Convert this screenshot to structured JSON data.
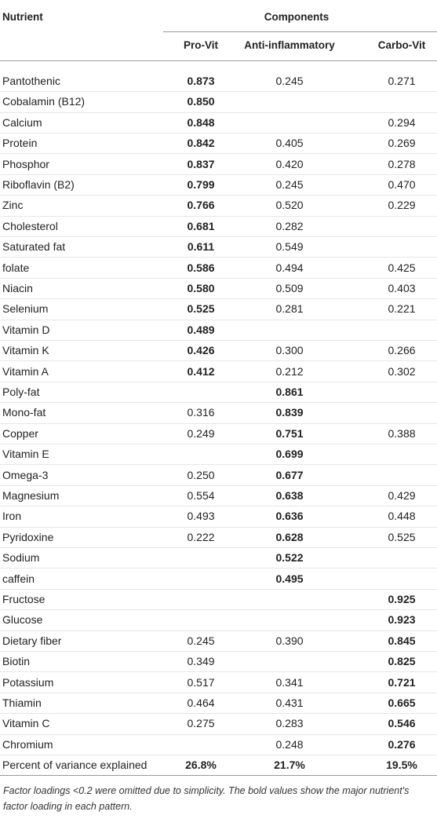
{
  "table": {
    "header": {
      "nutrient": "Nutrient",
      "components": "Components",
      "columns": [
        "Pro-Vit",
        "Anti-inflammatory",
        "Carbo-Vit"
      ]
    },
    "rows": [
      {
        "nutrient": "Pantothenic",
        "values": [
          "0.873",
          "0.245",
          "0.271"
        ],
        "bold": 0
      },
      {
        "nutrient": "Cobalamin (B12)",
        "values": [
          "0.850",
          null,
          null
        ],
        "bold": 0
      },
      {
        "nutrient": "Calcium",
        "values": [
          "0.848",
          null,
          "0.294"
        ],
        "bold": 0
      },
      {
        "nutrient": "Protein",
        "values": [
          "0.842",
          "0.405",
          "0.269"
        ],
        "bold": 0
      },
      {
        "nutrient": "Phosphor",
        "values": [
          "0.837",
          "0.420",
          "0.278"
        ],
        "bold": 0
      },
      {
        "nutrient": "Riboflavin (B2)",
        "values": [
          "0.799",
          "0.245",
          "0.470"
        ],
        "bold": 0
      },
      {
        "nutrient": "Zinc",
        "values": [
          "0.766",
          "0.520",
          "0.229"
        ],
        "bold": 0
      },
      {
        "nutrient": "Cholesterol",
        "values": [
          "0.681",
          "0.282",
          null
        ],
        "bold": 0
      },
      {
        "nutrient": "Saturated fat",
        "values": [
          "0.611",
          "0.549",
          null
        ],
        "bold": 0
      },
      {
        "nutrient": "folate",
        "values": [
          "0.586",
          "0.494",
          "0.425"
        ],
        "bold": 0
      },
      {
        "nutrient": "Niacin",
        "values": [
          "0.580",
          "0.509",
          "0.403"
        ],
        "bold": 0
      },
      {
        "nutrient": "Selenium",
        "values": [
          "0.525",
          "0.281",
          "0.221"
        ],
        "bold": 0
      },
      {
        "nutrient": "Vitamin D",
        "values": [
          "0.489",
          null,
          null
        ],
        "bold": 0
      },
      {
        "nutrient": "Vitamin K",
        "values": [
          "0.426",
          "0.300",
          "0.266"
        ],
        "bold": 0
      },
      {
        "nutrient": "Vitamin A",
        "values": [
          "0.412",
          "0.212",
          "0.302"
        ],
        "bold": 0
      },
      {
        "nutrient": "Poly-fat",
        "values": [
          null,
          "0.861",
          null
        ],
        "bold": 1
      },
      {
        "nutrient": "Mono-fat",
        "values": [
          "0.316",
          "0.839",
          null
        ],
        "bold": 1
      },
      {
        "nutrient": "Copper",
        "values": [
          "0.249",
          "0.751",
          "0.388"
        ],
        "bold": 1
      },
      {
        "nutrient": "Vitamin E",
        "values": [
          null,
          "0.699",
          null
        ],
        "bold": 1
      },
      {
        "nutrient": "Omega-3",
        "values": [
          "0.250",
          "0.677",
          null
        ],
        "bold": 1
      },
      {
        "nutrient": "Magnesium",
        "values": [
          "0.554",
          "0.638",
          "0.429"
        ],
        "bold": 1
      },
      {
        "nutrient": "Iron",
        "values": [
          "0.493",
          "0.636",
          "0.448"
        ],
        "bold": 1
      },
      {
        "nutrient": "Pyridoxine",
        "values": [
          "0.222",
          "0.628",
          "0.525"
        ],
        "bold": 1
      },
      {
        "nutrient": "Sodium",
        "values": [
          null,
          "0.522",
          null
        ],
        "bold": 1
      },
      {
        "nutrient": "caffein",
        "values": [
          null,
          "0.495",
          null
        ],
        "bold": 1
      },
      {
        "nutrient": "Fructose",
        "values": [
          null,
          null,
          "0.925"
        ],
        "bold": 2
      },
      {
        "nutrient": "Glucose",
        "values": [
          null,
          null,
          "0.923"
        ],
        "bold": 2
      },
      {
        "nutrient": "Dietary fiber",
        "values": [
          "0.245",
          "0.390",
          "0.845"
        ],
        "bold": 2
      },
      {
        "nutrient": "Biotin",
        "values": [
          "0.349",
          null,
          "0.825"
        ],
        "bold": 2
      },
      {
        "nutrient": "Potassium",
        "values": [
          "0.517",
          "0.341",
          "0.721"
        ],
        "bold": 2
      },
      {
        "nutrient": "Thiamin",
        "values": [
          "0.464",
          "0.431",
          "0.665"
        ],
        "bold": 2
      },
      {
        "nutrient": "Vitamin C",
        "values": [
          "0.275",
          "0.283",
          "0.546"
        ],
        "bold": 2
      },
      {
        "nutrient": "Chromium",
        "values": [
          null,
          "0.248",
          "0.276"
        ],
        "bold": 2
      }
    ],
    "footer_row": {
      "label": "Percent of variance explained",
      "values": [
        "26.8%",
        "21.7%",
        "19.5%"
      ]
    },
    "note": "Factor loadings <0.2 were omitted due to simplicity. The bold values show the major nutrient's factor loading in each pattern."
  }
}
